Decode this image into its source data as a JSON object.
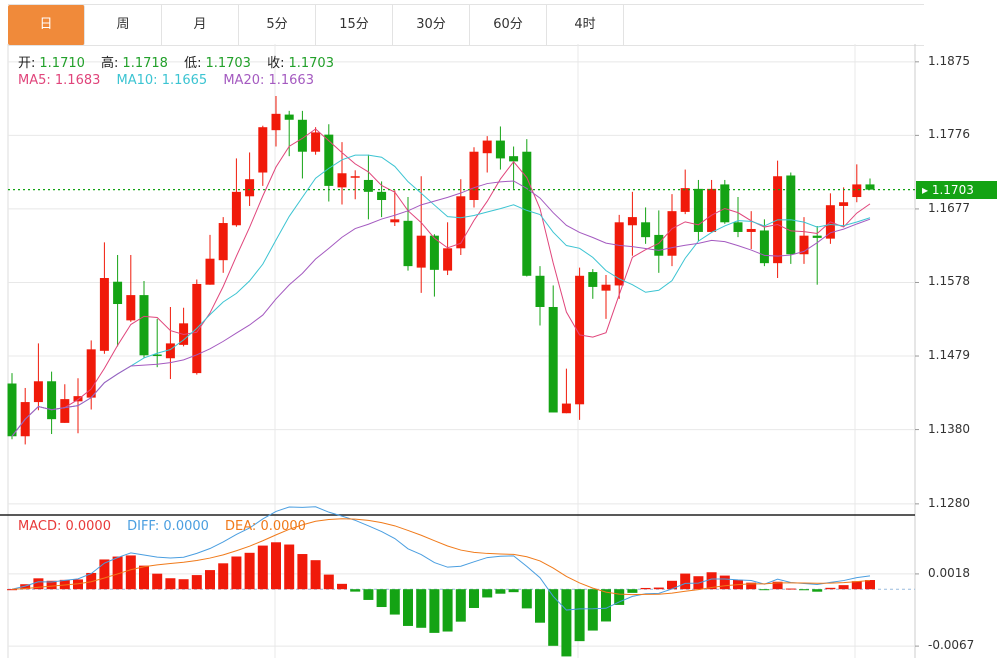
{
  "tabs": [
    {
      "label": "日",
      "active": true
    },
    {
      "label": "周"
    },
    {
      "label": "月"
    },
    {
      "label": "5分"
    },
    {
      "label": "15分"
    },
    {
      "label": "30分"
    },
    {
      "label": "60分"
    },
    {
      "label": "4时"
    }
  ],
  "ohlc_legend": {
    "open_label": "开:",
    "open": "1.1710",
    "high_label": "高:",
    "high": "1.1718",
    "low_label": "低:",
    "low": "1.1703",
    "close_label": "收:",
    "close": "1.1703"
  },
  "ma_legend": {
    "ma5": "MA5: 1.1683",
    "ma10": "MA10: 1.1665",
    "ma20": "MA20: 1.1663"
  },
  "macd_legend": {
    "macd": "MACD: 0.0000",
    "diff": "DIFF: 0.0000",
    "dea": "DEA: 0.0000"
  },
  "current_price": "1.1703",
  "colors": {
    "up": "#f01a0a",
    "down": "#14a314",
    "ma5": "#e0457b",
    "ma10": "#3cc4d2",
    "ma20": "#a45ac0",
    "diff": "#4a9ee0",
    "dea": "#f07a1a",
    "tab_active": "#f08a3a"
  },
  "chart_data": [
    {
      "type": "candlestick",
      "ylim": [
        1.1265,
        1.1899
      ],
      "y_ticks": [
        "1.1875",
        "1.1776",
        "1.1677",
        "1.1578",
        "1.1479",
        "1.1380",
        "1.1280"
      ],
      "grid": true,
      "ma_periods": [
        5,
        10,
        20
      ],
      "ohlc": [
        [
          1.1442,
          1.1456,
          1.1367,
          1.1371
        ],
        [
          1.1371,
          1.1436,
          1.136,
          1.1417
        ],
        [
          1.1417,
          1.1496,
          1.1406,
          1.1445
        ],
        [
          1.1445,
          1.1458,
          1.1374,
          1.1394
        ],
        [
          1.1389,
          1.1441,
          1.1389,
          1.1421
        ],
        [
          1.1418,
          1.1449,
          1.1375,
          1.1425
        ],
        [
          1.1423,
          1.15,
          1.1407,
          1.1488
        ],
        [
          1.1486,
          1.1632,
          1.1482,
          1.1584
        ],
        [
          1.1579,
          1.1615,
          1.1492,
          1.1549
        ],
        [
          1.1527,
          1.1615,
          1.1525,
          1.1561
        ],
        [
          1.1561,
          1.158,
          1.1477,
          1.148
        ],
        [
          1.1481,
          1.1529,
          1.1464,
          1.148
        ],
        [
          1.1476,
          1.1545,
          1.1448,
          1.1496
        ],
        [
          1.1494,
          1.1544,
          1.1492,
          1.1523
        ],
        [
          1.1456,
          1.1582,
          1.1454,
          1.1576
        ],
        [
          1.1575,
          1.1642,
          1.1575,
          1.161
        ],
        [
          1.1608,
          1.1666,
          1.1591,
          1.1658
        ],
        [
          1.1655,
          1.1745,
          1.1653,
          1.17
        ],
        [
          1.1694,
          1.1753,
          1.1681,
          1.1717
        ],
        [
          1.1726,
          1.1789,
          1.1708,
          1.1787
        ],
        [
          1.1783,
          1.1829,
          1.1761,
          1.1805
        ],
        [
          1.1804,
          1.1809,
          1.1748,
          1.1797
        ],
        [
          1.1797,
          1.1809,
          1.1718,
          1.1754
        ],
        [
          1.1754,
          1.1787,
          1.175,
          1.178
        ],
        [
          1.1777,
          1.1791,
          1.1687,
          1.1708
        ],
        [
          1.1706,
          1.1767,
          1.1683,
          1.1725
        ],
        [
          1.172,
          1.1729,
          1.169,
          1.1721
        ],
        [
          1.1716,
          1.175,
          1.1663,
          1.17
        ],
        [
          1.17,
          1.1714,
          1.1666,
          1.1689
        ],
        [
          1.1659,
          1.1702,
          1.1654,
          1.1663
        ],
        [
          1.1661,
          1.1693,
          1.1594,
          1.16
        ],
        [
          1.1598,
          1.1721,
          1.1564,
          1.1641
        ],
        [
          1.1641,
          1.1643,
          1.1559,
          1.1595
        ],
        [
          1.1594,
          1.1659,
          1.1588,
          1.1624
        ],
        [
          1.1624,
          1.1717,
          1.1615,
          1.1694
        ],
        [
          1.1689,
          1.176,
          1.1679,
          1.1754
        ],
        [
          1.1752,
          1.1775,
          1.1726,
          1.1769
        ],
        [
          1.1769,
          1.1788,
          1.173,
          1.1745
        ],
        [
          1.1748,
          1.1761,
          1.1704,
          1.1741
        ],
        [
          1.1754,
          1.1771,
          1.1586,
          1.1587
        ],
        [
          1.1587,
          1.16,
          1.152,
          1.1545
        ],
        [
          1.1545,
          1.1574,
          1.1403,
          1.1403
        ],
        [
          1.1402,
          1.1462,
          1.1402,
          1.1415
        ],
        [
          1.1414,
          1.1598,
          1.1393,
          1.1587
        ],
        [
          1.1592,
          1.1596,
          1.1556,
          1.1572
        ],
        [
          1.1567,
          1.1588,
          1.1529,
          1.1575
        ],
        [
          1.1574,
          1.1669,
          1.1556,
          1.1659
        ],
        [
          1.1655,
          1.17,
          1.1614,
          1.1666
        ],
        [
          1.1659,
          1.1679,
          1.163,
          1.1639
        ],
        [
          1.1642,
          1.1675,
          1.1591,
          1.1614
        ],
        [
          1.1614,
          1.1697,
          1.16,
          1.1674
        ],
        [
          1.1673,
          1.173,
          1.167,
          1.1705
        ],
        [
          1.1704,
          1.1716,
          1.1634,
          1.1646
        ],
        [
          1.1646,
          1.1716,
          1.1646,
          1.1704
        ],
        [
          1.171,
          1.1716,
          1.1657,
          1.1659
        ],
        [
          1.1659,
          1.1693,
          1.1639,
          1.1646
        ],
        [
          1.1646,
          1.1674,
          1.1623,
          1.165
        ],
        [
          1.1648,
          1.1663,
          1.16,
          1.1604
        ],
        [
          1.1604,
          1.1742,
          1.1584,
          1.1721
        ],
        [
          1.1722,
          1.1726,
          1.1603,
          1.1616
        ],
        [
          1.1616,
          1.1666,
          1.1603,
          1.1641
        ],
        [
          1.1641,
          1.1654,
          1.1575,
          1.1638
        ],
        [
          1.1637,
          1.1698,
          1.163,
          1.1682
        ],
        [
          1.1681,
          1.1706,
          1.1653,
          1.1686
        ],
        [
          1.1693,
          1.1737,
          1.1686,
          1.171
        ],
        [
          1.171,
          1.1718,
          1.1703,
          1.1703
        ]
      ]
    },
    {
      "type": "bar",
      "name": "MACD",
      "ylim": [
        -0.0081,
        0.0085
      ],
      "y_ticks": [
        "0.0018",
        "-0.0067"
      ],
      "grid": true
    }
  ]
}
